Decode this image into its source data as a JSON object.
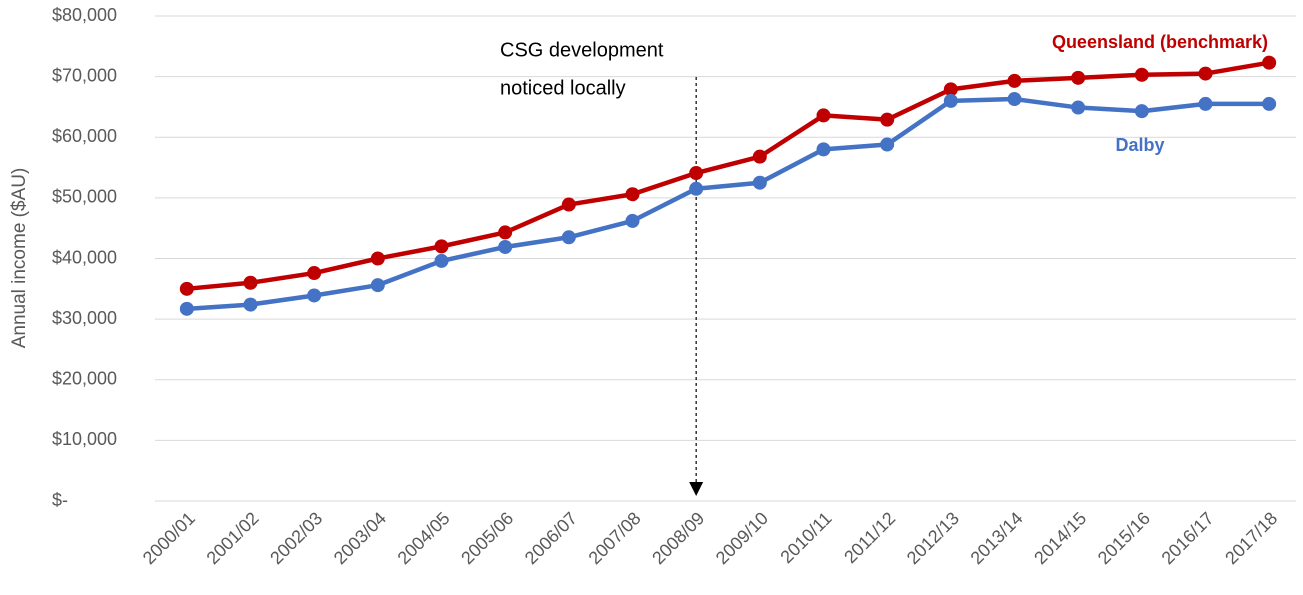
{
  "chart_data": {
    "type": "line",
    "y_label": "Annual income ($AU)",
    "categories": [
      "2000/01",
      "2001/02",
      "2002/03",
      "2003/04",
      "2004/05",
      "2005/06",
      "2006/07",
      "2007/08",
      "2008/09",
      "2009/10",
      "2010/11",
      "2011/12",
      "2012/13",
      "2013/14",
      "2014/15",
      "2015/16",
      "2016/17",
      "2017/18"
    ],
    "series": [
      {
        "name": "Queensland (benchmark)",
        "color": "#c00000",
        "values": [
          35000,
          36000,
          37600,
          40000,
          42000,
          44300,
          48900,
          50600,
          54100,
          56800,
          63600,
          62900,
          67900,
          69300,
          69800,
          70300,
          70500,
          72300
        ]
      },
      {
        "name": "Dalby",
        "color": "#4472c4",
        "values": [
          31700,
          32400,
          33900,
          35600,
          39600,
          41900,
          43500,
          46200,
          51500,
          52500,
          58000,
          58800,
          66000,
          66300,
          64900,
          64300,
          65500,
          65500
        ]
      }
    ],
    "ylim": [
      0,
      80000
    ],
    "yticks": [
      {
        "value": 0,
        "label": "$-"
      },
      {
        "value": 10000,
        "label": "$10,000"
      },
      {
        "value": 20000,
        "label": "$20,000"
      },
      {
        "value": 30000,
        "label": "$30,000"
      },
      {
        "value": 40000,
        "label": "$40,000"
      },
      {
        "value": 50000,
        "label": "$50,000"
      },
      {
        "value": 60000,
        "label": "$60,000"
      },
      {
        "value": 70000,
        "label": "$70,000"
      },
      {
        "value": 80000,
        "label": "$80,000"
      }
    ],
    "grid": true,
    "annotation": {
      "lines": [
        "CSG development",
        "noticed locally"
      ],
      "category": "2008/09"
    }
  }
}
